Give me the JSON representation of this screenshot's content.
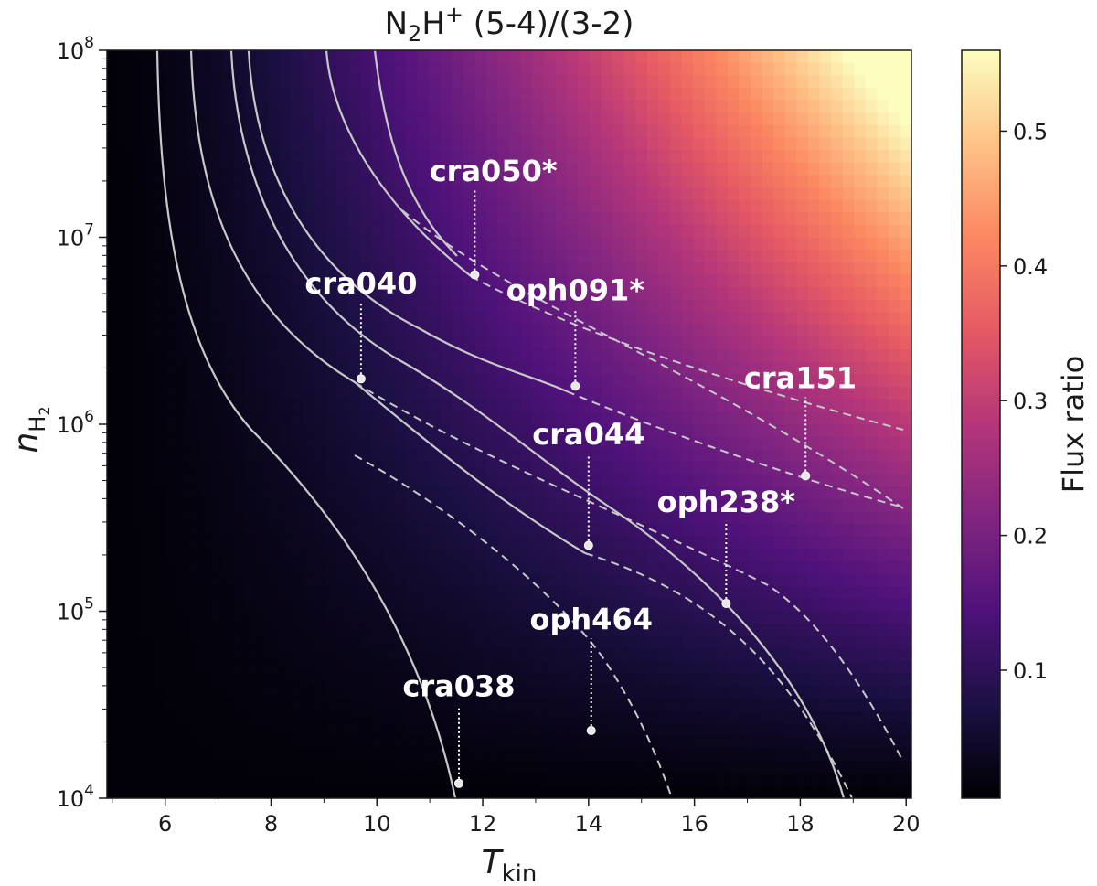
{
  "chart_data": {
    "type": "heatmap",
    "title": {
      "main": "N",
      "sub": "2",
      "mid": "H",
      "sup": "+",
      "tail": "  (5-4)/(3-2)"
    },
    "xlabel": {
      "main": "T",
      "sub": "kin"
    },
    "ylabel": {
      "main": "n",
      "sub": "H",
      "subsub": "2"
    },
    "xlim": [
      4.9,
      20.1
    ],
    "ylim": [
      10000,
      100000000
    ],
    "yscale": "log",
    "xticks": [
      6,
      8,
      10,
      12,
      14,
      16,
      18,
      20
    ],
    "xtick_labels": [
      "6",
      "8",
      "10",
      "12",
      "14",
      "16",
      "18",
      "20"
    ],
    "yticks": [
      10000,
      100000,
      1000000,
      10000000,
      100000000
    ],
    "ytick_labels": [
      {
        "base": "10",
        "exp": "4"
      },
      {
        "base": "10",
        "exp": "5"
      },
      {
        "base": "10",
        "exp": "6"
      },
      {
        "base": "10",
        "exp": "7"
      },
      {
        "base": "10",
        "exp": "8"
      }
    ],
    "colormap": "magma",
    "colorbar": {
      "label": "Flux ratio",
      "range": [
        0.005,
        0.56
      ],
      "ticks": [
        0.1,
        0.2,
        0.3,
        0.4,
        0.5
      ],
      "tick_labels": [
        "0.1",
        "0.2",
        "0.3",
        "0.4",
        "0.5"
      ]
    },
    "contour_color": "#c8c8c8",
    "sources": [
      {
        "label": "cra050*",
        "T": 11.85,
        "n": 6300000,
        "label_T": 12.2,
        "label_n": 20000000
      },
      {
        "label": "cra040",
        "T": 9.7,
        "n": 1750000,
        "label_T": 9.7,
        "label_n": 5000000
      },
      {
        "label": "oph091*",
        "T": 13.75,
        "n": 1600000,
        "label_T": 13.75,
        "label_n": 4600000
      },
      {
        "label": "cra151",
        "T": 18.1,
        "n": 530000,
        "label_T": 18.0,
        "label_n": 1560000
      },
      {
        "label": "cra044",
        "T": 14.0,
        "n": 225000,
        "label_T": 14.0,
        "label_n": 780000
      },
      {
        "label": "oph238*",
        "T": 16.6,
        "n": 110000,
        "label_T": 16.6,
        "label_n": 340000
      },
      {
        "label": "oph464",
        "T": 14.05,
        "n": 23000,
        "label_T": 14.05,
        "label_n": 80000
      },
      {
        "label": "cra038",
        "T": 11.55,
        "n": 12000,
        "label_T": 11.55,
        "label_n": 35000
      }
    ]
  }
}
